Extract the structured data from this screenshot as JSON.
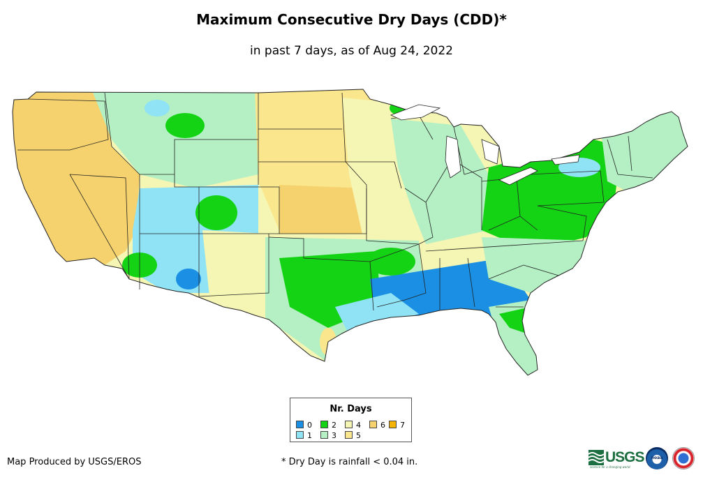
{
  "map": {
    "title": "Maximum Consecutive Dry Days (CDD)*",
    "subtitle": "in past 7 days, as of Aug 24, 2022",
    "region": "Contiguous United States",
    "colors": {
      "background": "#ffffff",
      "state_border": "#222222",
      "water": "#ffffff"
    }
  },
  "legend": {
    "title": "Nr. Days",
    "items": [
      {
        "label": "0",
        "color": "#1a8fe3"
      },
      {
        "label": "1",
        "color": "#8fe3f5"
      },
      {
        "label": "2",
        "color": "#14d214"
      },
      {
        "label": "3",
        "color": "#b4f0c3"
      },
      {
        "label": "4",
        "color": "#f5f5b4"
      },
      {
        "label": "5",
        "color": "#fae68c"
      },
      {
        "label": "6",
        "color": "#f5d26e"
      },
      {
        "label": "7",
        "color": "#f5b400"
      }
    ]
  },
  "footer": {
    "credit": "Map Produced by USGS/EROS",
    "footnote": "* Dry Day is rainfall < 0.04 in.",
    "logos": {
      "usgs_text": "USGS",
      "usgs_tagline": "science for a changing world",
      "noaa_text": "noaa"
    }
  }
}
